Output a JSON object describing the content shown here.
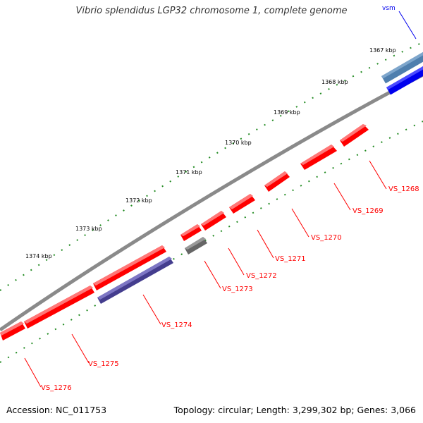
{
  "title": "Vibrio splendidus LGP32 chromosome 1, complete genome",
  "footer": {
    "accession": "Accession: NC_011753",
    "summary": "Topology: circular; Length: 3,299,302 bp; Genes: 3,066"
  },
  "colors": {
    "backbone": "#8a8a8a",
    "gene_forward": "#ff0000",
    "gene_reverse": "#ff0000",
    "gene_grey": "#666666",
    "gene_purple": "#443d8e",
    "feature_blue": "#0000ee",
    "feature_steelblue": "#4f7fae",
    "tick": "#228b22",
    "label_red": "#ff0000",
    "label_blue": "#0000ee"
  },
  "kbp_labels": [
    "1367 kbp",
    "1368 kbp",
    "1369 kbp",
    "1370 kbp",
    "1371 kbp",
    "1372 kbp",
    "1373 kbp",
    "1374 kbp"
  ],
  "gene_labels": [
    "VS_1268",
    "VS_1269",
    "VS_1270",
    "VS_1271",
    "VS_1272",
    "VS_1273",
    "VS_1274",
    "VS_1275",
    "VS_1276"
  ],
  "feature_label": "vsm"
}
